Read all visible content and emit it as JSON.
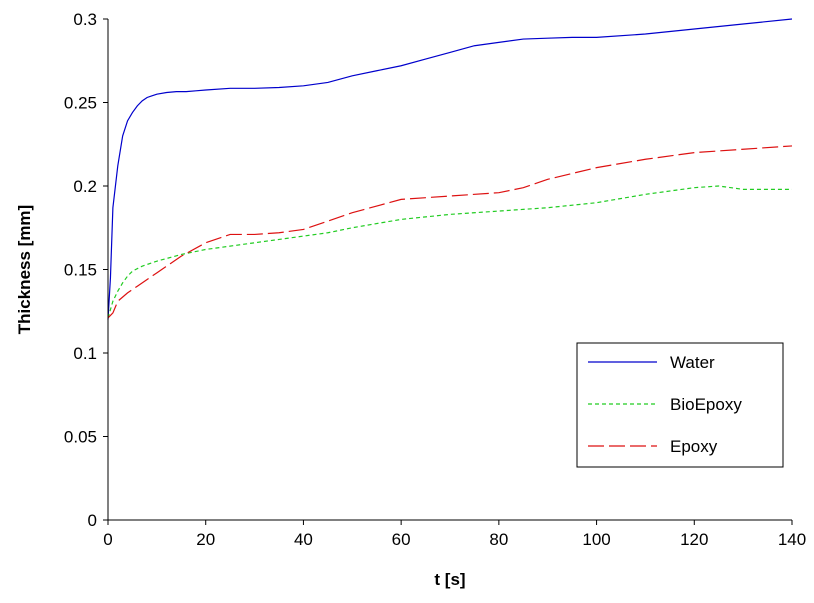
{
  "chart_data": {
    "type": "line",
    "title": "",
    "xlabel": "t [s]",
    "ylabel": "Thickness [mm]",
    "xlim": [
      0,
      140
    ],
    "ylim": [
      0,
      0.3
    ],
    "x_ticks": [
      0,
      20,
      40,
      60,
      80,
      100,
      120,
      140
    ],
    "x_tick_labels": [
      "0",
      "20",
      "40",
      "60",
      "80",
      "100",
      "120",
      "140"
    ],
    "y_ticks": [
      0,
      0.05,
      0.1,
      0.15,
      0.2,
      0.25,
      0.3
    ],
    "y_tick_labels": [
      "0",
      "0.05",
      "0.1",
      "0.15",
      "0.2",
      "0.25",
      "0.3"
    ],
    "grid": false,
    "legend_position": "lower-right",
    "series": [
      {
        "name": "Water",
        "color": "#0000cc",
        "dash": "solid",
        "x": [
          0,
          0.5,
          1,
          2,
          3,
          4,
          5,
          6,
          7,
          8,
          9,
          10,
          12,
          14,
          16,
          18,
          20,
          25,
          30,
          35,
          40,
          45,
          50,
          55,
          60,
          65,
          70,
          75,
          80,
          85,
          90,
          95,
          100,
          110,
          120,
          130,
          140
        ],
        "y": [
          0.12,
          0.145,
          0.187,
          0.212,
          0.23,
          0.239,
          0.244,
          0.248,
          0.251,
          0.253,
          0.254,
          0.255,
          0.256,
          0.2565,
          0.2565,
          0.257,
          0.2575,
          0.2585,
          0.2585,
          0.259,
          0.26,
          0.262,
          0.266,
          0.269,
          0.272,
          0.276,
          0.28,
          0.284,
          0.286,
          0.288,
          0.2885,
          0.289,
          0.289,
          0.291,
          0.294,
          0.297,
          0.3
        ]
      },
      {
        "name": "BioEpoxy",
        "color": "#22cc22",
        "dash": "short-dash",
        "x": [
          0,
          1,
          2,
          3,
          4,
          5,
          7,
          10,
          15,
          20,
          25,
          30,
          35,
          40,
          45,
          50,
          60,
          70,
          80,
          90,
          100,
          110,
          120,
          125,
          130,
          140
        ],
        "y": [
          0.121,
          0.131,
          0.137,
          0.142,
          0.146,
          0.149,
          0.152,
          0.155,
          0.159,
          0.162,
          0.164,
          0.166,
          0.168,
          0.17,
          0.172,
          0.175,
          0.18,
          0.183,
          0.185,
          0.187,
          0.19,
          0.195,
          0.199,
          0.2,
          0.198,
          0.198
        ]
      },
      {
        "name": "Epoxy",
        "color": "#dd1111",
        "dash": "long-dash",
        "x": [
          0,
          1,
          2,
          4,
          6,
          10,
          15,
          20,
          25,
          30,
          35,
          40,
          45,
          50,
          60,
          70,
          80,
          85,
          90,
          100,
          110,
          120,
          130,
          140
        ],
        "y": [
          0.121,
          0.124,
          0.131,
          0.136,
          0.14,
          0.148,
          0.158,
          0.166,
          0.171,
          0.171,
          0.172,
          0.174,
          0.179,
          0.184,
          0.192,
          0.194,
          0.196,
          0.199,
          0.204,
          0.211,
          0.216,
          0.22,
          0.222,
          0.224
        ]
      }
    ]
  }
}
